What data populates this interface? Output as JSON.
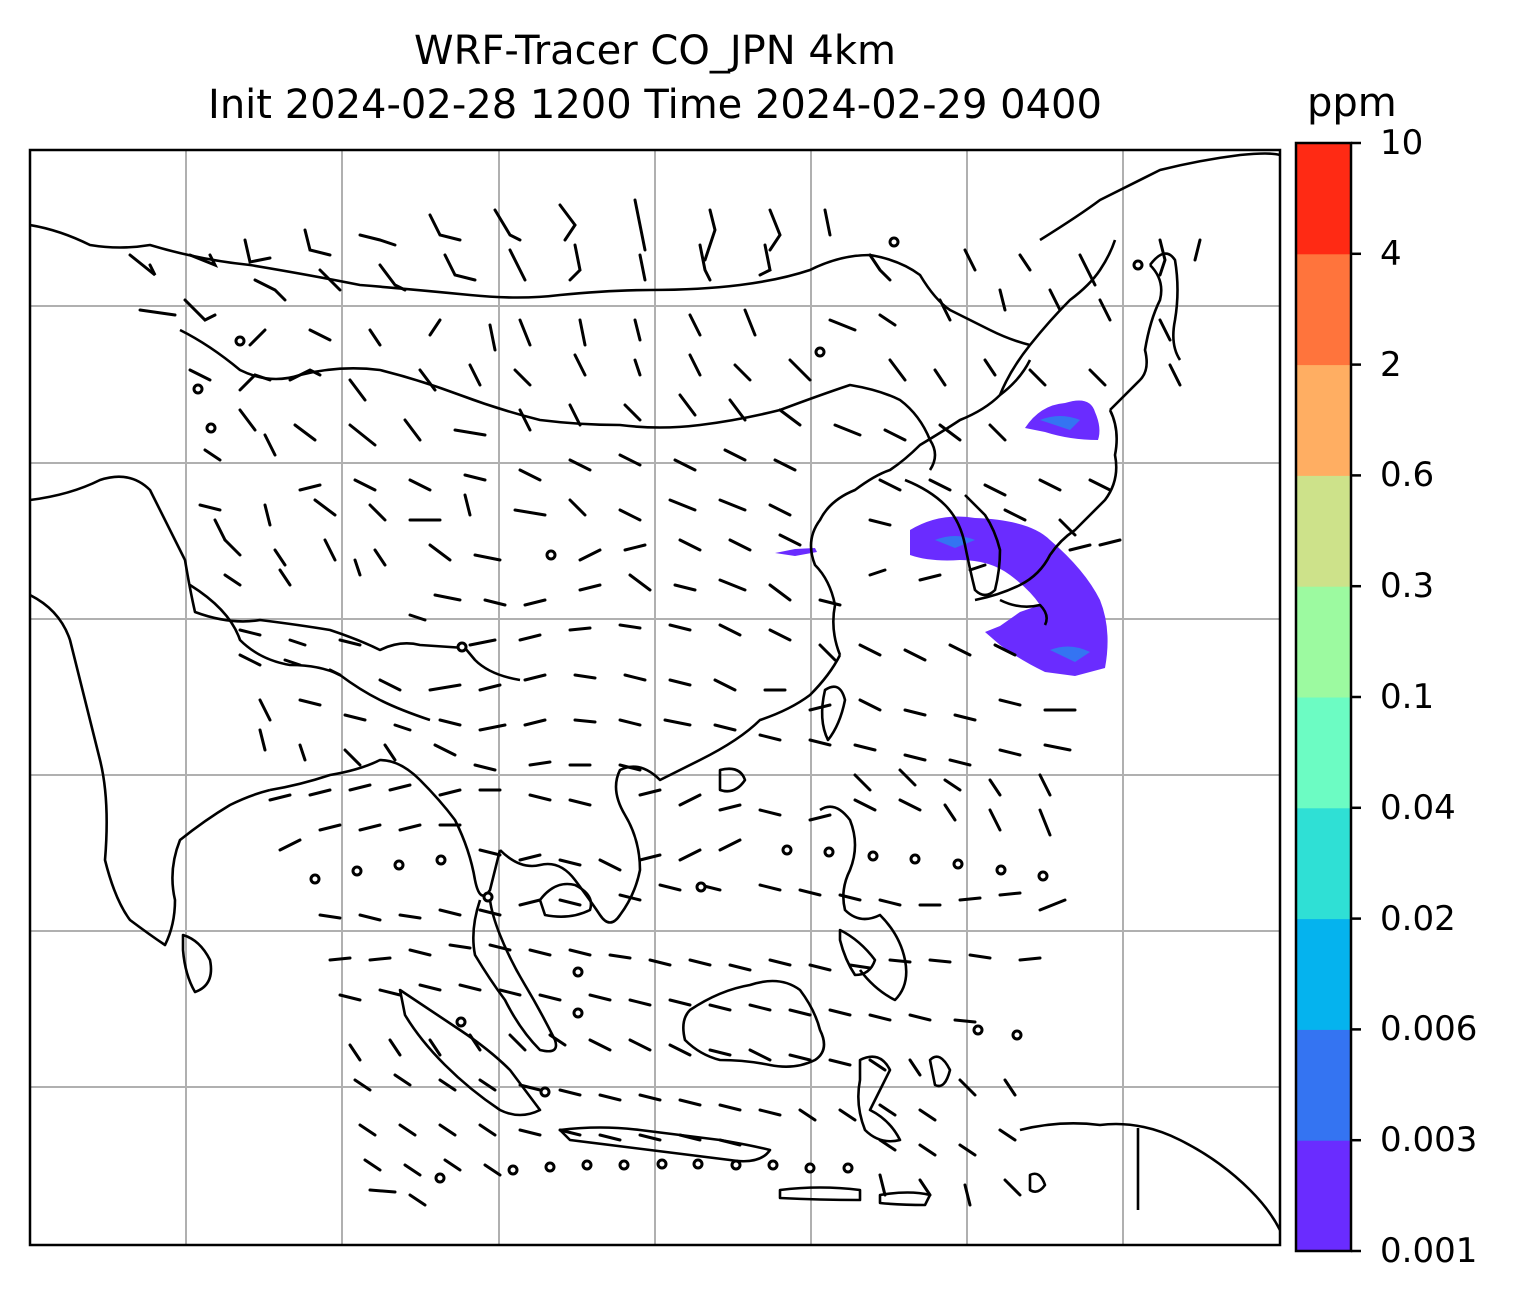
{
  "title": {
    "line1": "WRF-Tracer CO_JPN 4km",
    "line2": "Init 2024-02-28 1200 Time 2024-02-29 0400"
  },
  "colorbar": {
    "unit": "ppm",
    "ticks": [
      "0.001",
      "0.003",
      "0.006",
      "0.02",
      "0.04",
      "0.1",
      "0.3",
      "0.6",
      "2",
      "4",
      "10"
    ],
    "colors": [
      "#6a2cff",
      "#3474f2",
      "#05b3ee",
      "#2fe0d5",
      "#6cfcc3",
      "#9cfaa0",
      "#cde28a",
      "#ffae62",
      "#ff743c",
      "#ff2a14"
    ]
  },
  "map": {
    "plume_color": "#6a2cff",
    "plume_inner_color": "#3474f2",
    "coast_color": "#000000",
    "grid_color": "#b0b0b0"
  }
}
